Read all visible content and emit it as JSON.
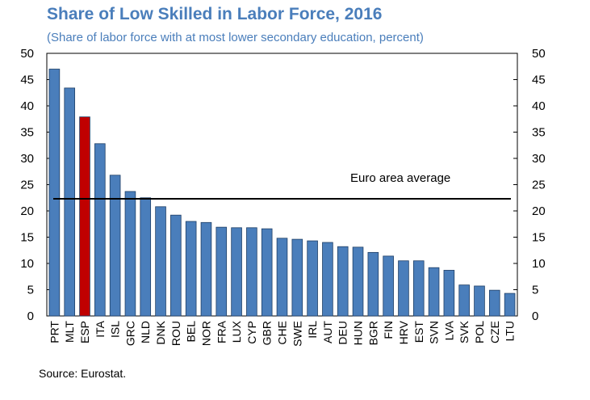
{
  "chart_data": {
    "type": "bar",
    "title": "Share of Low Skilled in Labor Force, 2016",
    "subtitle": "(Share of labor force with at most lower secondary education, percent)",
    "source": "Source: Eurostat.",
    "categories": [
      "PRT",
      "MLT",
      "ESP",
      "ITA",
      "ISL",
      "GRC",
      "NLD",
      "DNK",
      "ROU",
      "BEL",
      "NOR",
      "FRA",
      "LUX",
      "CYP",
      "GBR",
      "CHE",
      "SWE",
      "IRL",
      "AUT",
      "DEU",
      "HUN",
      "BGR",
      "FIN",
      "HRV",
      "EST",
      "SVN",
      "LVA",
      "SVK",
      "POL",
      "CZE",
      "LTU"
    ],
    "values": [
      47.0,
      43.4,
      37.9,
      32.8,
      26.8,
      23.7,
      22.5,
      20.8,
      19.2,
      18.0,
      17.8,
      16.9,
      16.8,
      16.8,
      16.6,
      14.8,
      14.6,
      14.3,
      14.0,
      13.2,
      13.1,
      12.1,
      11.4,
      10.5,
      10.5,
      9.2,
      8.7,
      5.9,
      5.7,
      4.9,
      4.3
    ],
    "highlight": "ESP",
    "colors": {
      "bar": "#4a7ebb",
      "highlight": "#c00000",
      "title": "#4a7ebb"
    },
    "ylim": [
      0,
      50
    ],
    "yticks": [
      "0",
      "5",
      "10",
      "15",
      "20",
      "25",
      "30",
      "35",
      "40",
      "45",
      "50"
    ],
    "reference_line": {
      "label": "Euro area average",
      "value": 22.3
    },
    "grid": false,
    "legend": "none"
  }
}
